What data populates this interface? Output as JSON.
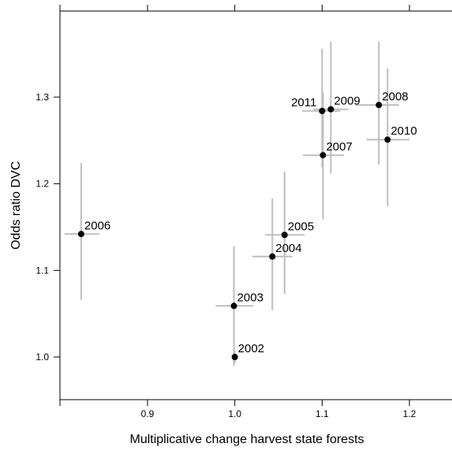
{
  "chart_data": {
    "type": "scatter",
    "title": "",
    "xlabel": "Multiplicative change harvest state forests",
    "ylabel": "Odds ratio DVC",
    "xlim": [
      0.8,
      1.25
    ],
    "ylim": [
      0.95,
      1.35
    ],
    "x_ticks": [
      0.9,
      1.0,
      1.1,
      1.2
    ],
    "x_tick_labels": [
      "0.9",
      "1.0",
      "1.1",
      "1.2"
    ],
    "y_ticks": [
      1.0,
      1.1,
      1.2,
      1.3
    ],
    "y_tick_labels": [
      "1.0",
      "1.1",
      "1.2",
      "1.3"
    ],
    "grid": false,
    "colors": {
      "point": "#000000",
      "error_bar": "#bebebe"
    },
    "points": [
      {
        "label": "2002",
        "x": 1.0,
        "y": 1.0,
        "x_err": [
          0.998,
          1.002
        ],
        "y_err": [
          0.993,
          1.007
        ],
        "label_pos": "right"
      },
      {
        "label": "2003",
        "x": 0.999,
        "y": 1.059,
        "x_err": [
          0.978,
          1.021
        ],
        "y_err": [
          0.99,
          1.128
        ],
        "label_pos": "right"
      },
      {
        "label": "2004",
        "x": 1.043,
        "y": 1.116,
        "x_err": [
          1.02,
          1.066
        ],
        "y_err": [
          1.054,
          1.183
        ],
        "label_pos": "right"
      },
      {
        "label": "2005",
        "x": 1.057,
        "y": 1.141,
        "x_err": [
          1.035,
          1.08
        ],
        "y_err": [
          1.073,
          1.214
        ],
        "label_pos": "right"
      },
      {
        "label": "2006",
        "x": 0.824,
        "y": 1.142,
        "x_err": [
          0.805,
          0.845
        ],
        "y_err": [
          1.066,
          1.224
        ],
        "label_pos": "right"
      },
      {
        "label": "2007",
        "x": 1.101,
        "y": 1.233,
        "x_err": [
          1.078,
          1.125
        ],
        "y_err": [
          1.159,
          1.306
        ],
        "label_pos": "right"
      },
      {
        "label": "2008",
        "x": 1.165,
        "y": 1.291,
        "x_err": [
          1.138,
          1.188
        ],
        "y_err": [
          1.222,
          1.364
        ],
        "label_pos": "right"
      },
      {
        "label": "2009",
        "x": 1.11,
        "y": 1.286,
        "x_err": [
          1.09,
          1.13
        ],
        "y_err": [
          1.212,
          1.364
        ],
        "label_pos": "right"
      },
      {
        "label": "2010",
        "x": 1.175,
        "y": 1.251,
        "x_err": [
          1.151,
          1.2
        ],
        "y_err": [
          1.174,
          1.333
        ],
        "label_pos": "right"
      },
      {
        "label": "2011",
        "x": 1.1,
        "y": 1.284,
        "x_err": [
          1.077,
          1.121
        ],
        "y_err": [
          1.219,
          1.356
        ],
        "label_pos": "left"
      }
    ]
  }
}
